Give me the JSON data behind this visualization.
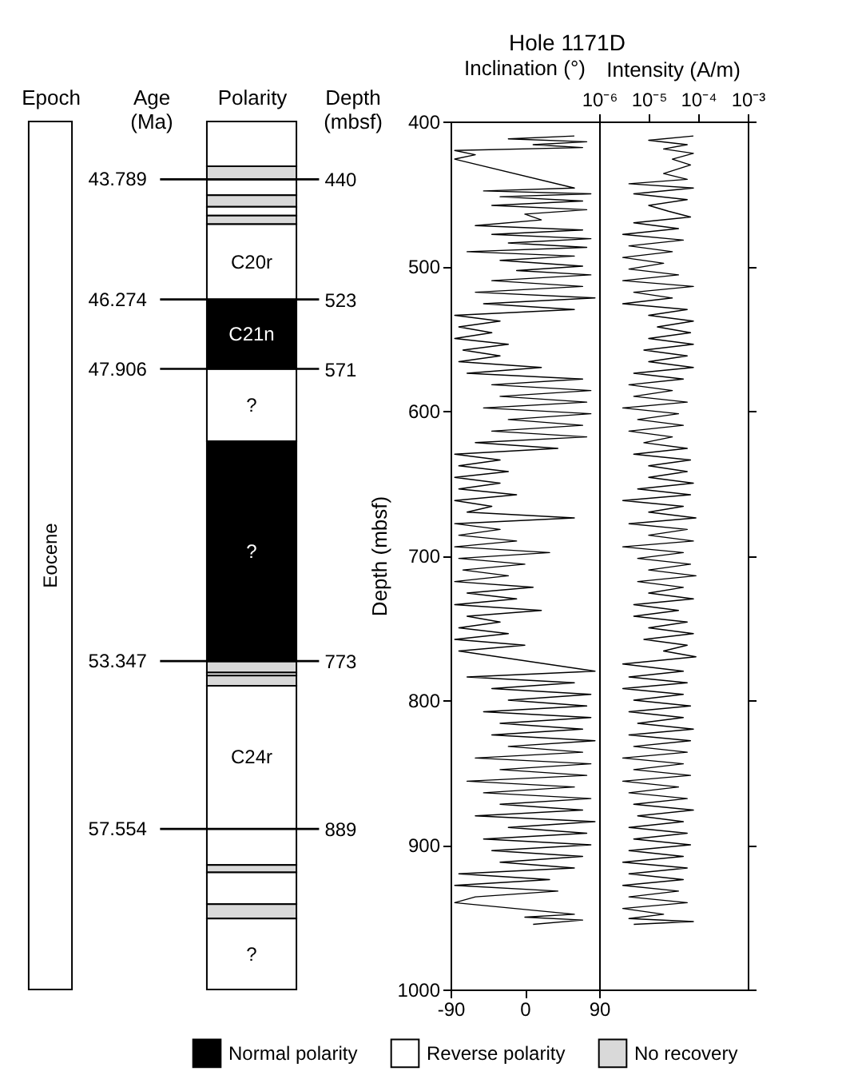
{
  "chart_data": [
    {
      "type": "bar",
      "categories": [
        "Epoch",
        "Age (Ma)",
        "Polarity",
        "Depth (mbsf)"
      ],
      "legend": "bottom",
      "ylim": [
        1000,
        400
      ],
      "yticks": [
        440,
        523,
        571,
        773,
        889
      ],
      "annotations": [
        "43.789",
        "46.274",
        "47.906",
        "53.347",
        "57.554"
      ],
      "series": [
        {
          "color": "#ffffff",
          "base": [
            400,
            null,
            null,
            null
          ],
          "values": [
            600,
            null,
            null,
            null
          ],
          "value_labels": [
            "Eocene",
            null,
            null,
            null
          ]
        },
        {
          "color": "#ffffff",
          "base": [
            null,
            null,
            400,
            null
          ],
          "values": [
            null,
            null,
            31,
            null
          ]
        },
        {
          "color": "#d9d9d9",
          "base": [
            null,
            null,
            431,
            null
          ],
          "values": [
            null,
            null,
            9,
            null
          ]
        },
        {
          "color": "#ffffff",
          "base": [
            null,
            null,
            440,
            null
          ],
          "values": [
            null,
            null,
            11,
            null
          ]
        },
        {
          "color": "#d9d9d9",
          "base": [
            null,
            null,
            451,
            null
          ],
          "values": [
            null,
            null,
            8,
            null
          ]
        },
        {
          "color": "#ffffff",
          "base": [
            null,
            null,
            459,
            null
          ],
          "values": [
            null,
            null,
            6,
            null
          ]
        },
        {
          "color": "#d9d9d9",
          "base": [
            null,
            null,
            465,
            null
          ],
          "values": [
            null,
            null,
            6,
            null
          ]
        },
        {
          "color": "#ffffff",
          "base": [
            null,
            null,
            471,
            null
          ],
          "values": [
            null,
            null,
            52,
            null
          ],
          "value_labels": [
            null,
            null,
            "C20r",
            null
          ]
        },
        {
          "name": "Normal polarity",
          "color": "#000000",
          "base": [
            null,
            null,
            523,
            null
          ],
          "values": [
            null,
            null,
            48,
            null
          ],
          "value_labels": [
            null,
            null,
            "C21n",
            null
          ]
        },
        {
          "name": "Reverse polarity",
          "color": "#ffffff",
          "base": [
            null,
            null,
            571,
            null
          ],
          "values": [
            null,
            null,
            50,
            null
          ],
          "value_labels": [
            null,
            null,
            "?",
            null
          ]
        },
        {
          "color": "#000000",
          "base": [
            null,
            null,
            621,
            null
          ],
          "values": [
            null,
            null,
            152,
            null
          ],
          "value_labels": [
            null,
            null,
            "?",
            null
          ]
        },
        {
          "name": "No recovery",
          "color": "#d9d9d9",
          "base": [
            null,
            null,
            773,
            null
          ],
          "values": [
            null,
            null,
            8,
            null
          ]
        },
        {
          "color": "#ffffff",
          "base": [
            null,
            null,
            781,
            null
          ],
          "values": [
            null,
            null,
            2,
            null
          ]
        },
        {
          "color": "#d9d9d9",
          "base": [
            null,
            null,
            783,
            null
          ],
          "values": [
            null,
            null,
            7,
            null
          ]
        },
        {
          "color": "#ffffff",
          "base": [
            null,
            null,
            790,
            null
          ],
          "values": [
            null,
            null,
            99,
            null
          ],
          "value_labels": [
            null,
            null,
            "C24r",
            null
          ]
        },
        {
          "color": "#ffffff",
          "base": [
            null,
            null,
            889,
            null
          ],
          "values": [
            null,
            null,
            25,
            null
          ]
        },
        {
          "color": "#d9d9d9",
          "base": [
            null,
            null,
            914,
            null
          ],
          "values": [
            null,
            null,
            5,
            null
          ]
        },
        {
          "color": "#ffffff",
          "base": [
            null,
            null,
            919,
            null
          ],
          "values": [
            null,
            null,
            22,
            null
          ]
        },
        {
          "color": "#d9d9d9",
          "base": [
            null,
            null,
            941,
            null
          ],
          "values": [
            null,
            null,
            10,
            null
          ]
        },
        {
          "color": "#ffffff",
          "base": [
            null,
            null,
            951,
            null
          ],
          "values": [
            null,
            null,
            49,
            null
          ],
          "value_labels": [
            null,
            null,
            "?",
            null
          ]
        }
      ],
      "ref_lines": [
        {
          "axis": "y",
          "value": 440
        },
        {
          "axis": "y",
          "value": 523
        },
        {
          "axis": "y",
          "value": 571
        },
        {
          "axis": "y",
          "value": 773
        },
        {
          "axis": "y",
          "value": 889
        }
      ]
    },
    {
      "type": "line",
      "orientation": "horizontal",
      "title": "Hole 1171D",
      "xlabel": "Inclination (°)",
      "ylabel": "Depth (mbsf)",
      "color": "#000000",
      "xlim": [
        -90,
        90
      ],
      "xticks": [
        -90,
        0,
        90
      ],
      "ylim": [
        1000,
        400
      ],
      "yticks": [
        400,
        500,
        600,
        700,
        800,
        900,
        1000
      ],
      "x": [
        410,
        412,
        414,
        416,
        418,
        420,
        423,
        426,
        446,
        448,
        450,
        452,
        455,
        458,
        461,
        464,
        468,
        472,
        475,
        478,
        481,
        484,
        487,
        490,
        493,
        496,
        500,
        503,
        506,
        510,
        514,
        518,
        522,
        526,
        530,
        534,
        538,
        542,
        546,
        550,
        554,
        558,
        562,
        566,
        570,
        574,
        578,
        582,
        586,
        590,
        594,
        598,
        602,
        606,
        610,
        614,
        618,
        622,
        626,
        630,
        634,
        638,
        642,
        646,
        650,
        654,
        658,
        662,
        666,
        670,
        674,
        678,
        682,
        686,
        690,
        694,
        698,
        702,
        706,
        710,
        714,
        718,
        722,
        726,
        730,
        734,
        738,
        742,
        746,
        750,
        754,
        758,
        762,
        766,
        780,
        784,
        788,
        792,
        796,
        800,
        804,
        808,
        812,
        816,
        820,
        824,
        828,
        832,
        836,
        840,
        844,
        848,
        852,
        856,
        860,
        864,
        868,
        872,
        876,
        880,
        884,
        888,
        892,
        896,
        900,
        904,
        908,
        912,
        916,
        920,
        924,
        928,
        932,
        936,
        940,
        948,
        950,
        952,
        955
      ],
      "values": [
        60,
        -20,
        75,
        10,
        70,
        -85,
        -60,
        -85,
        60,
        -50,
        80,
        -30,
        70,
        -40,
        75,
        0,
        20,
        -60,
        70,
        -40,
        80,
        -20,
        75,
        -70,
        60,
        -30,
        70,
        -10,
        80,
        -40,
        70,
        -60,
        85,
        -50,
        60,
        -85,
        -30,
        -80,
        -40,
        -85,
        -20,
        -75,
        -30,
        -80,
        20,
        -70,
        70,
        -40,
        80,
        -30,
        75,
        -50,
        80,
        -20,
        70,
        -40,
        75,
        -60,
        40,
        -85,
        -30,
        -80,
        -20,
        -85,
        -30,
        -80,
        -10,
        -85,
        -40,
        -70,
        60,
        -85,
        -30,
        -80,
        -10,
        -85,
        30,
        -80,
        0,
        -75,
        -20,
        -85,
        10,
        -70,
        -10,
        -85,
        20,
        -70,
        -30,
        -80,
        -20,
        -85,
        0,
        -80,
        85,
        -70,
        60,
        -40,
        80,
        -20,
        75,
        -50,
        80,
        -30,
        70,
        -40,
        85,
        -20,
        70,
        -60,
        80,
        -30,
        75,
        -70,
        60,
        -50,
        80,
        -30,
        70,
        -60,
        85,
        -20,
        75,
        -50,
        80,
        -40,
        70,
        -30,
        60,
        -80,
        30,
        -85,
        40,
        -60,
        -85,
        60,
        0,
        70,
        10
      ]
    },
    {
      "type": "line",
      "orientation": "horizontal",
      "xlabel": "Intensity (A/m)",
      "color": "#000000",
      "log": "x",
      "tick_labels": "x",
      "xlim": [
        1e-06,
        0.001
      ],
      "xticks": [
        {
          "value": 1e-06,
          "label": "10⁻⁶"
        },
        {
          "value": 1e-05,
          "label": "10⁻⁵"
        },
        {
          "value": 0.0001,
          "label": "10⁻⁴"
        },
        {
          "value": 0.001,
          "label": "10⁻³"
        }
      ],
      "ylim": [
        1000,
        400
      ],
      "yticks": [
        400,
        500,
        600,
        700,
        800,
        900,
        1000
      ],
      "x": [
        410,
        413,
        416,
        419,
        422,
        426,
        430,
        436,
        440,
        443,
        446,
        450,
        454,
        458,
        462,
        466,
        470,
        474,
        478,
        482,
        486,
        490,
        494,
        498,
        502,
        506,
        510,
        514,
        518,
        522,
        526,
        530,
        534,
        538,
        542,
        546,
        550,
        554,
        558,
        562,
        566,
        570,
        574,
        578,
        582,
        586,
        590,
        594,
        598,
        602,
        606,
        610,
        614,
        618,
        622,
        626,
        630,
        634,
        638,
        642,
        646,
        650,
        654,
        658,
        662,
        666,
        670,
        674,
        678,
        682,
        686,
        690,
        694,
        698,
        702,
        706,
        710,
        714,
        718,
        722,
        726,
        730,
        734,
        738,
        742,
        746,
        750,
        754,
        758,
        762,
        766,
        770,
        775,
        780,
        784,
        788,
        792,
        796,
        800,
        804,
        808,
        812,
        816,
        820,
        824,
        828,
        832,
        836,
        840,
        844,
        848,
        852,
        856,
        860,
        864,
        868,
        872,
        876,
        880,
        884,
        888,
        892,
        896,
        900,
        904,
        908,
        912,
        916,
        920,
        924,
        928,
        932,
        936,
        940,
        944,
        948,
        951,
        953,
        955
      ],
      "values": [
        8e-05,
        1e-05,
        6e-05,
        2e-05,
        8e-05,
        3e-05,
        7e-05,
        2e-05,
        6e-05,
        4e-06,
        8e-05,
        5e-06,
        6e-05,
        1e-05,
        2.5e-05,
        7e-05,
        5e-06,
        4e-05,
        3e-06,
        5e-05,
        4e-06,
        3e-05,
        3e-06,
        2e-05,
        4e-06,
        4e-05,
        3e-06,
        8e-05,
        5e-06,
        3e-05,
        3e-06,
        6e-05,
        1e-05,
        8e-05,
        1.5e-05,
        7e-05,
        1e-05,
        8e-05,
        8e-06,
        6e-05,
        1e-05,
        8e-05,
        5e-06,
        5e-05,
        4e-06,
        3e-05,
        5e-06,
        6e-05,
        3e-06,
        4e-05,
        6e-06,
        5e-05,
        4e-06,
        3e-05,
        8e-06,
        6e-05,
        5e-06,
        7e-05,
        1e-05,
        6e-05,
        1e-05,
        8e-05,
        6e-06,
        7e-05,
        3e-06,
        5e-05,
        1e-05,
        9e-05,
        4e-06,
        6e-05,
        1e-05,
        8e-05,
        3e-06,
        5e-05,
        6e-06,
        7e-05,
        1e-05,
        9e-05,
        6e-06,
        5e-05,
        1e-05,
        8e-05,
        5e-06,
        4e-05,
        5e-06,
        6e-05,
        1e-05,
        8e-05,
        8e-06,
        6e-05,
        2e-05,
        9e-05,
        3e-06,
        5e-05,
        4e-06,
        6e-05,
        3e-06,
        5e-05,
        5e-06,
        7e-05,
        4e-06,
        5e-05,
        6e-06,
        8e-05,
        4e-06,
        7e-05,
        5e-06,
        6e-05,
        3e-06,
        5e-05,
        5e-06,
        7e-05,
        3e-06,
        4e-05,
        4e-06,
        6e-05,
        5e-06,
        8e-05,
        6e-06,
        5e-05,
        4e-06,
        6e-05,
        5e-06,
        7e-05,
        4e-06,
        5e-05,
        3e-06,
        6e-05,
        4e-06,
        5e-05,
        3e-06,
        4e-05,
        4e-06,
        6e-05,
        3e-06,
        2e-05,
        4e-06,
        8e-05,
        5e-06
      ]
    }
  ]
}
